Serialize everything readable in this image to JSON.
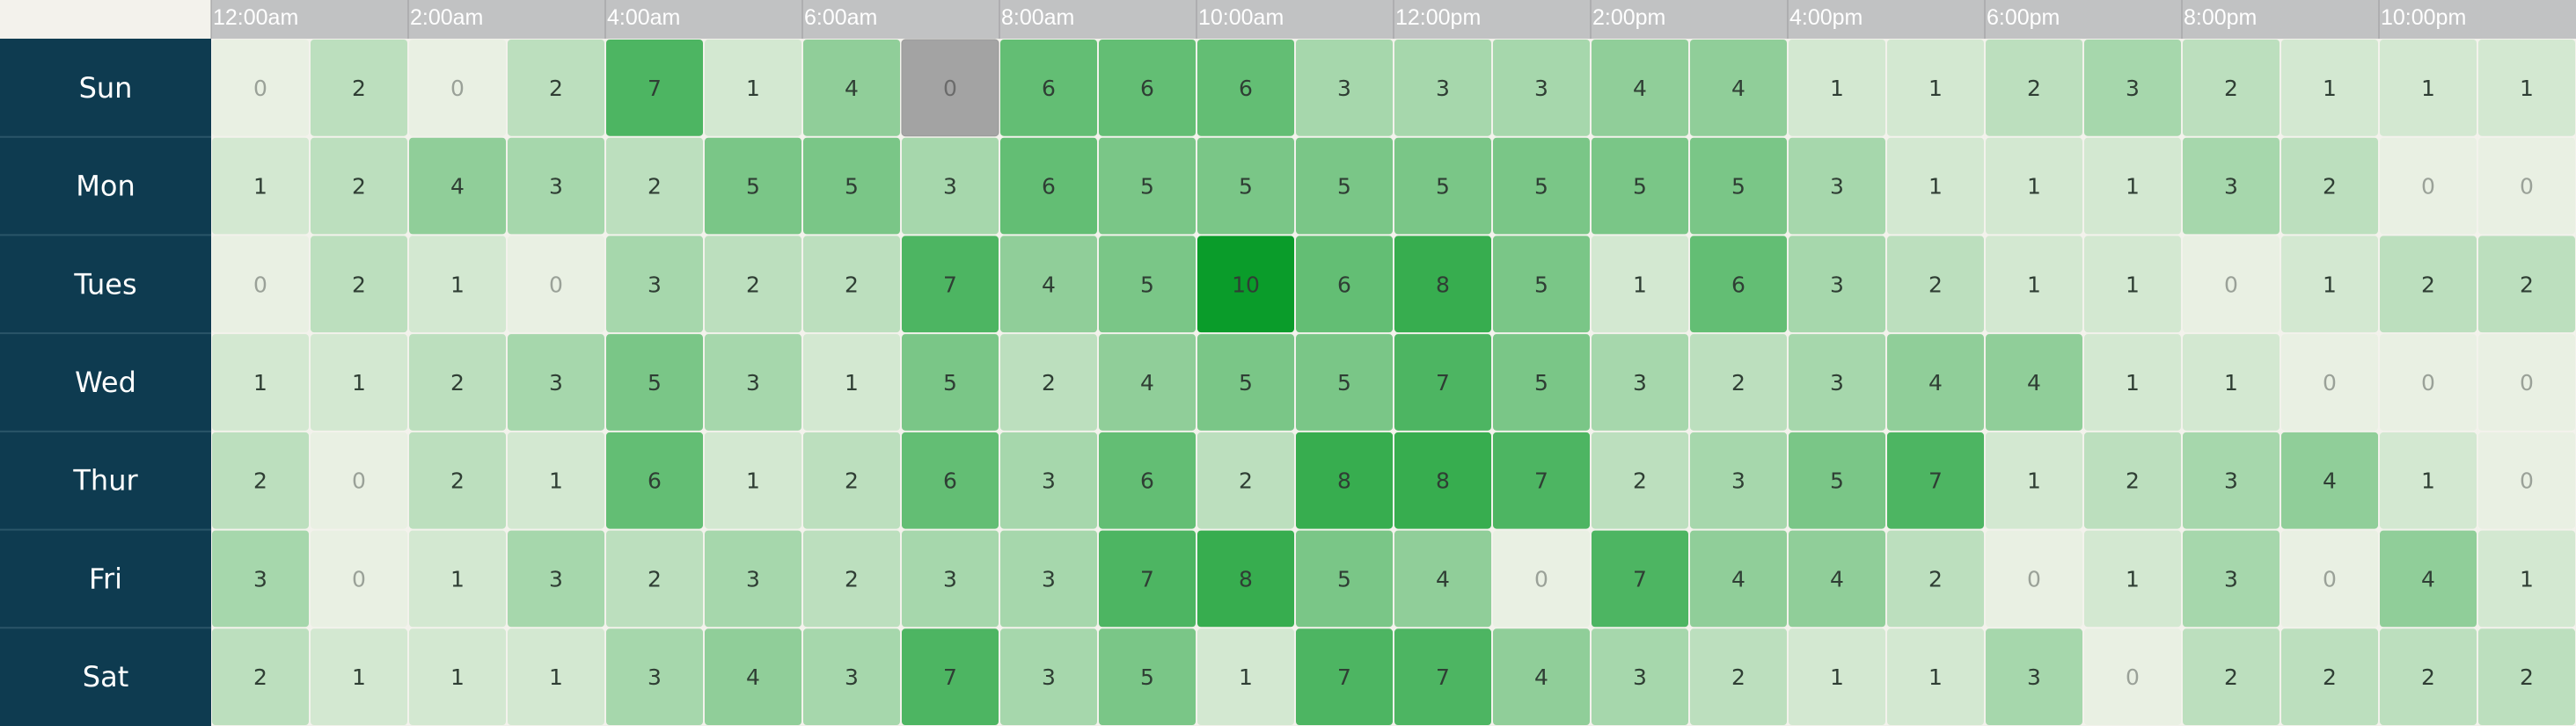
{
  "chart_data": {
    "type": "heatmap",
    "title": "",
    "xlabel": "",
    "ylabel": "",
    "rows": [
      "Sun",
      "Mon",
      "Tues",
      "Wed",
      "Thur",
      "Fri",
      "Sat"
    ],
    "columns": [
      "0",
      "1",
      "2",
      "3",
      "4",
      "5",
      "6",
      "7",
      "8",
      "9",
      "10",
      "11",
      "12",
      "13",
      "14",
      "15",
      "16",
      "17",
      "18",
      "19",
      "20",
      "21",
      "22",
      "23"
    ],
    "column_tick_labels": [
      {
        "column": 0,
        "label": "12:00am"
      },
      {
        "column": 2,
        "label": "2:00am"
      },
      {
        "column": 4,
        "label": "4:00am"
      },
      {
        "column": 6,
        "label": "6:00am"
      },
      {
        "column": 8,
        "label": "8:00am"
      },
      {
        "column": 10,
        "label": "10:00am"
      },
      {
        "column": 12,
        "label": "12:00pm"
      },
      {
        "column": 14,
        "label": "2:00pm"
      },
      {
        "column": 16,
        "label": "4:00pm"
      },
      {
        "column": 18,
        "label": "6:00pm"
      },
      {
        "column": 20,
        "label": "8:00pm"
      },
      {
        "column": 22,
        "label": "10:00pm"
      }
    ],
    "values": [
      [
        0,
        2,
        0,
        2,
        7,
        1,
        4,
        0,
        6,
        6,
        6,
        3,
        3,
        3,
        4,
        4,
        1,
        1,
        2,
        3,
        2,
        1,
        1,
        1
      ],
      [
        1,
        2,
        4,
        3,
        2,
        5,
        5,
        3,
        6,
        5,
        5,
        5,
        5,
        5,
        5,
        5,
        3,
        1,
        1,
        1,
        3,
        2,
        0,
        0
      ],
      [
        0,
        2,
        1,
        0,
        3,
        2,
        2,
        7,
        4,
        5,
        10,
        6,
        8,
        5,
        1,
        6,
        3,
        2,
        1,
        1,
        0,
        1,
        2,
        2
      ],
      [
        1,
        1,
        2,
        3,
        5,
        3,
        1,
        5,
        2,
        4,
        5,
        5,
        7,
        5,
        3,
        2,
        3,
        4,
        4,
        1,
        1,
        0,
        0,
        0
      ],
      [
        2,
        0,
        2,
        1,
        6,
        1,
        2,
        6,
        3,
        6,
        2,
        8,
        8,
        7,
        2,
        3,
        5,
        7,
        1,
        2,
        3,
        4,
        1,
        0
      ],
      [
        3,
        0,
        1,
        3,
        2,
        3,
        2,
        3,
        3,
        7,
        8,
        5,
        4,
        0,
        7,
        4,
        4,
        2,
        0,
        1,
        3,
        0,
        4,
        1
      ],
      [
        2,
        1,
        1,
        1,
        3,
        4,
        3,
        7,
        3,
        5,
        1,
        7,
        7,
        4,
        3,
        2,
        1,
        1,
        3,
        0,
        2,
        2,
        2,
        2
      ]
    ],
    "highlighted_cell": {
      "row": 0,
      "column": 7
    },
    "value_range": [
      0,
      10
    ],
    "grid": true,
    "legend": "none"
  },
  "colors": {
    "page_background": "#f3f2ec",
    "header_background": "#c1c2c3",
    "day_column_background": "#0e3b50",
    "row_divider": "#2a5568",
    "low": "#e9f0e3",
    "high": "#0a9c2a",
    "highlight": "#a3a3a3",
    "cell_gap": "#ffffff",
    "text_dark": "#2f3e34",
    "text_light": "#9aa198"
  }
}
